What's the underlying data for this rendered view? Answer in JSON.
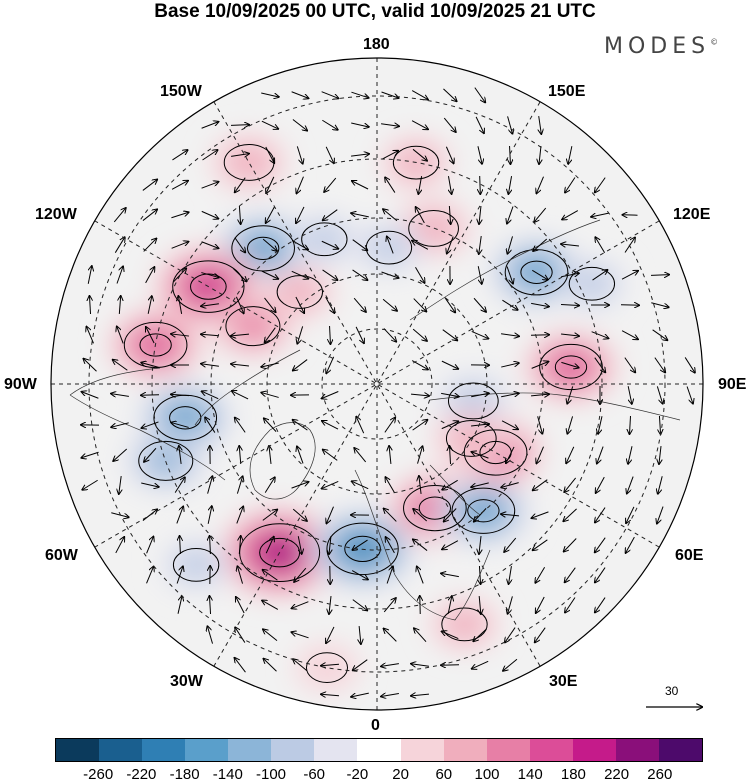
{
  "title": "Base 10/09/2025 00 UTC, valid 10/09/2025 21 UTC",
  "brand": {
    "name": "MODES",
    "mark": "©"
  },
  "meridian_labels": {
    "lon_180": "180",
    "lon_150e": "150E",
    "lon_120e": "120E",
    "lon_90e": "90E",
    "lon_60e": "60E",
    "lon_30e": "30E",
    "lon_0": "0",
    "lon_30w": "30W",
    "lon_60w": "60W",
    "lon_90w": "90W",
    "lon_120w": "120W",
    "lon_150w": "150W"
  },
  "reference_vector": {
    "label": "30"
  },
  "colorbar": {
    "colors": [
      "#0b3a5c",
      "#1a5f8f",
      "#2f7fb4",
      "#5a9fcb",
      "#8cb5d8",
      "#bccbe4",
      "#e4e4f0",
      "#ffffff",
      "#f6d4da",
      "#f0aebd",
      "#e77fa6",
      "#dc4d98",
      "#c51b8a",
      "#8a0f7a",
      "#4d0a6b"
    ],
    "ticks": [
      "-260",
      "-220",
      "-180",
      "-140",
      "-100",
      "-60",
      "-20",
      "20",
      "60",
      "100",
      "140",
      "180",
      "220",
      "260"
    ]
  },
  "anomalies": [
    {
      "lat": 58,
      "lon": -140,
      "value": -140
    },
    {
      "lat": 55,
      "lon": -120,
      "value": 180
    },
    {
      "lat": 50,
      "lon": -100,
      "value": 140
    },
    {
      "lat": 65,
      "lon": -115,
      "value": 100
    },
    {
      "lat": 55,
      "lon": -80,
      "value": -140
    },
    {
      "lat": 50,
      "lon": -70,
      "value": -100
    },
    {
      "lat": 55,
      "lon": -30,
      "value": 220
    },
    {
      "lat": 60,
      "lon": -5,
      "value": -180
    },
    {
      "lat": 65,
      "lon": 25,
      "value": 140
    },
    {
      "lat": 60,
      "lon": 40,
      "value": -140
    },
    {
      "lat": 65,
      "lon": 60,
      "value": 140
    },
    {
      "lat": 55,
      "lon": 95,
      "value": 140
    },
    {
      "lat": 55,
      "lon": 125,
      "value": -140
    },
    {
      "lat": 60,
      "lon": 160,
      "value": 80
    },
    {
      "lat": 65,
      "lon": 175,
      "value": -60
    },
    {
      "lat": 62,
      "lon": -160,
      "value": -60
    },
    {
      "lat": 72,
      "lon": 80,
      "value": -80
    },
    {
      "lat": 70,
      "lon": 60,
      "value": 80
    },
    {
      "lat": 68,
      "lon": -140,
      "value": 60
    },
    {
      "lat": 50,
      "lon": 170,
      "value": 60
    },
    {
      "lat": 45,
      "lon": -150,
      "value": 80
    },
    {
      "lat": 45,
      "lon": 20,
      "value": 60
    },
    {
      "lat": 45,
      "lon": -45,
      "value": -60
    },
    {
      "lat": 40,
      "lon": -10,
      "value": 40
    },
    {
      "lat": 48,
      "lon": 115,
      "value": -60
    }
  ]
}
